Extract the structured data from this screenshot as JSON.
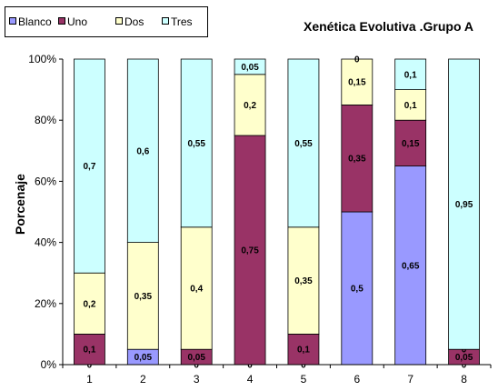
{
  "chart_data": {
    "type": "bar",
    "stacked": true,
    "title": "Xenética Evolutiva .Grupo A",
    "ylabel": "Porcenaje",
    "xlabel": "",
    "categories": [
      "1",
      "2",
      "3",
      "4",
      "5",
      "6",
      "7",
      "8"
    ],
    "ylim": [
      0,
      1
    ],
    "y_ticks": [
      "0%",
      "20%",
      "40%",
      "60%",
      "80%",
      "100%"
    ],
    "legend_position": "top-left",
    "grid": false,
    "series": [
      {
        "name": "Blanco",
        "color": "#9999FF",
        "values": [
          0,
          0.05,
          0,
          0,
          0,
          0.5,
          0.65,
          0
        ],
        "labels": [
          "0",
          "0,05",
          "0",
          "0",
          "0",
          "0,5",
          "0,65",
          "0"
        ]
      },
      {
        "name": "Uno",
        "color": "#993366",
        "values": [
          0.1,
          0,
          0.05,
          0.75,
          0.1,
          0.35,
          0.15,
          0.05
        ],
        "labels": [
          "0,1",
          "",
          "0,05",
          "0,75",
          "0,1",
          "0,35",
          "0,15",
          "0,05"
        ]
      },
      {
        "name": "Dos",
        "color": "#FFFFCC",
        "values": [
          0.2,
          0.35,
          0.4,
          0.2,
          0.35,
          0.15,
          0.1,
          0
        ],
        "labels": [
          "0,2",
          "0,35",
          "0,4",
          "0,2",
          "0,35",
          "0,15",
          "0,1",
          "0"
        ]
      },
      {
        "name": "Tres",
        "color": "#CCFFFF",
        "values": [
          0.7,
          0.6,
          0.55,
          0.05,
          0.55,
          0,
          0.1,
          0.95
        ],
        "labels": [
          "0,7",
          "0,6",
          "0,55",
          "0,05",
          "0,55",
          "0",
          "0,1",
          "0,95"
        ]
      }
    ]
  }
}
